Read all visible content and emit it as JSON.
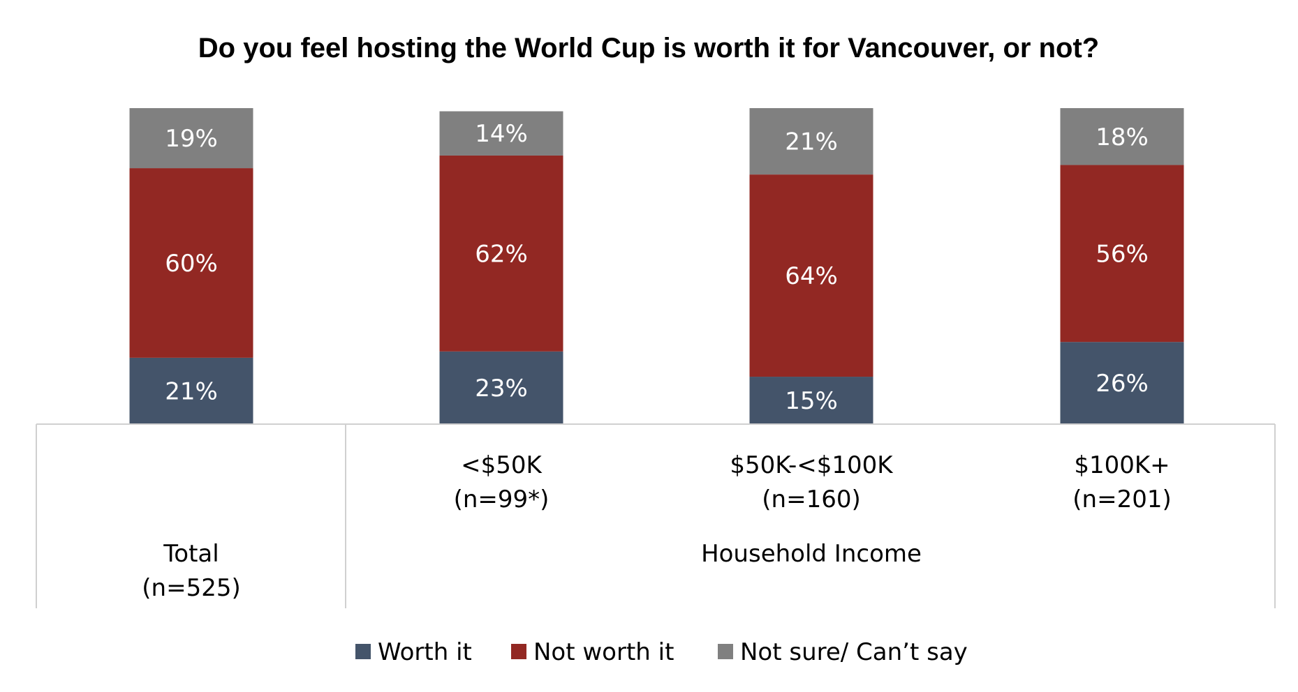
{
  "chart_data": {
    "type": "bar",
    "stacked": true,
    "title": "Do you feel hosting the World Cup is worth it for Vancouver, or not?",
    "categories": [
      {
        "line1": "",
        "line2": ""
      },
      {
        "line1": "<$50K",
        "line2": "(n=99*)"
      },
      {
        "line1": "$50K-<$100K",
        "line2": "(n=160)"
      },
      {
        "line1": "$100K+",
        "line2": "(n=201)"
      }
    ],
    "group_labels": [
      {
        "line1": "Total",
        "line2": "(n=525)"
      },
      {
        "line1": "Household Income",
        "line2": ""
      }
    ],
    "series": [
      {
        "name": "Worth it",
        "color": "#44546a",
        "values": [
          21,
          23,
          15,
          26
        ],
        "labels": [
          "21%",
          "23%",
          "15%",
          "26%"
        ]
      },
      {
        "name": "Not worth it",
        "color": "#922823",
        "values": [
          60,
          62,
          64,
          56
        ],
        "labels": [
          "60%",
          "62%",
          "64%",
          "56%"
        ]
      },
      {
        "name": "Not sure/ Can’t say",
        "color": "#808080",
        "values": [
          19,
          14,
          21,
          18
        ],
        "labels": [
          "19%",
          "14%",
          "21%",
          "18%"
        ]
      }
    ],
    "ylim": [
      0,
      100
    ],
    "grid": false,
    "legend_position": "bottom"
  }
}
